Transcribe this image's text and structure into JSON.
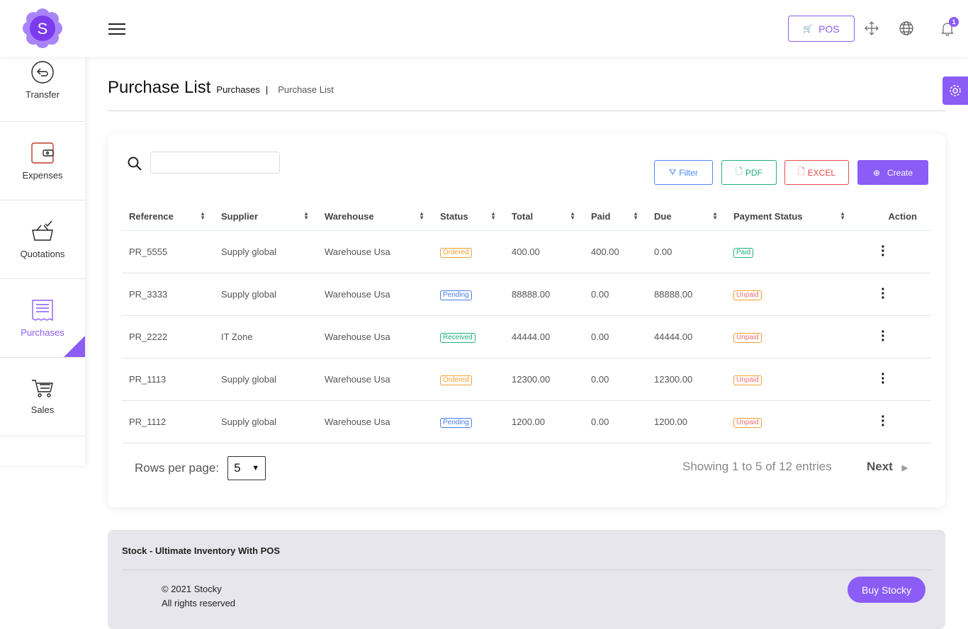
{
  "header": {
    "logo_letter": "S",
    "pos_label": "POS",
    "notification_count": "1"
  },
  "sidebar": {
    "items": [
      {
        "label": "Transfer",
        "icon": "transfer-icon"
      },
      {
        "label": "Expenses",
        "icon": "wallet-icon"
      },
      {
        "label": "Quotations",
        "icon": "basket-check-icon"
      },
      {
        "label": "Purchases",
        "icon": "receipt-icon",
        "active": true
      },
      {
        "label": "Sales",
        "icon": "cart-icon"
      }
    ]
  },
  "page": {
    "title": "Purchase List",
    "breadcrumb": [
      "Purchases",
      "Purchase List"
    ]
  },
  "toolbar": {
    "search_placeholder": "",
    "filter": "Filter",
    "pdf": "PDF",
    "excel": "EXCEL",
    "create": "Create"
  },
  "table": {
    "headers": [
      "Reference",
      "Supplier",
      "Warehouse",
      "Status",
      "Total",
      "Paid",
      "Due",
      "Payment Status",
      "Action"
    ],
    "rows": [
      {
        "ref": "PR_5555",
        "supplier": "Supply global",
        "warehouse": "Warehouse Usa",
        "status": "Ordered",
        "total": "400.00",
        "paid": "400.00",
        "due": "0.00",
        "payment": "Paid"
      },
      {
        "ref": "PR_3333",
        "supplier": "Supply global",
        "warehouse": "Warehouse Usa",
        "status": "Pending",
        "total": "88888.00",
        "paid": "0.00",
        "due": "88888.00",
        "payment": "Unpaid"
      },
      {
        "ref": "PR_2222",
        "supplier": "IT Zone",
        "warehouse": "Warehouse Usa",
        "status": "Received",
        "total": "44444.00",
        "paid": "0.00",
        "due": "44444.00",
        "payment": "Unpaid"
      },
      {
        "ref": "PR_1113",
        "supplier": "Supply global",
        "warehouse": "Warehouse Usa",
        "status": "Ordered",
        "total": "12300.00",
        "paid": "0.00",
        "due": "12300.00",
        "payment": "Unpaid"
      },
      {
        "ref": "PR_1112",
        "supplier": "Supply global",
        "warehouse": "Warehouse Usa",
        "status": "Pending",
        "total": "1200.00",
        "paid": "0.00",
        "due": "1200.00",
        "payment": "Unpaid"
      }
    ]
  },
  "pagination": {
    "rows_label": "Rows per page:",
    "rows_value": "5",
    "showing": "Showing 1 to 5 of 12 entries",
    "next": "Next"
  },
  "footer": {
    "title": "Stock - Ultimate Inventory With POS",
    "copyright": "© 2021 Stocky",
    "rights": "All rights reserved",
    "buy": "Buy Stocky"
  },
  "colors": {
    "accent": "#8b5cf6",
    "ordered": "#f0a030",
    "pending": "#4a7de8",
    "received": "#22b07d",
    "paid": "#22b07d",
    "unpaid": "#f0a030"
  }
}
